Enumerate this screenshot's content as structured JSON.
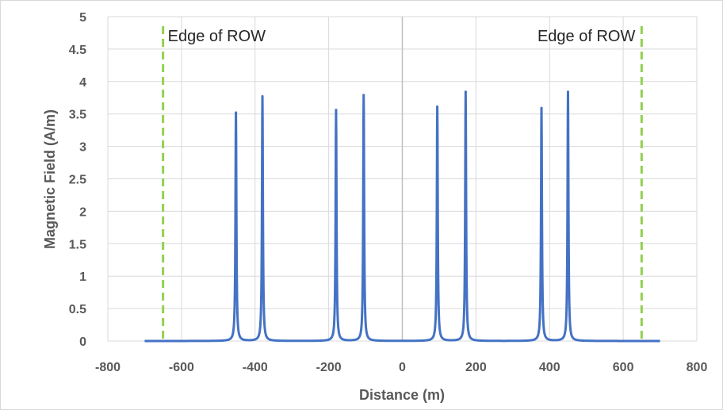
{
  "chart_data": {
    "type": "line",
    "xlabel": "Distance (m)",
    "ylabel": "Magnetic Field (A/m)",
    "xlim": [
      -800,
      800
    ],
    "ylim": [
      0,
      5
    ],
    "x_ticks": [
      -800,
      -600,
      -400,
      -200,
      0,
      200,
      400,
      600,
      800
    ],
    "y_ticks": [
      "0",
      "0.5",
      "1",
      "1.5",
      "2",
      "2.5",
      "3",
      "3.5",
      "4",
      "4.5",
      "5"
    ],
    "grid": true,
    "series": [
      {
        "color": "#4472C4",
        "peaks": [
          {
            "x": -452,
            "y": 3.52
          },
          {
            "x": -380,
            "y": 3.77
          },
          {
            "x": -180,
            "y": 3.56
          },
          {
            "x": -105,
            "y": 3.79
          },
          {
            "x": 95,
            "y": 3.61
          },
          {
            "x": 172,
            "y": 3.84
          },
          {
            "x": 378,
            "y": 3.59
          },
          {
            "x": 450,
            "y": 3.84
          }
        ],
        "x_range": [
          -700,
          700
        ]
      }
    ],
    "reference_lines": [
      {
        "x": -650,
        "label": "Edge of ROW",
        "color": "#92D050",
        "style": "dashed"
      },
      {
        "x": 650,
        "label": "Edge of ROW",
        "color": "#92D050",
        "style": "dashed"
      }
    ]
  }
}
